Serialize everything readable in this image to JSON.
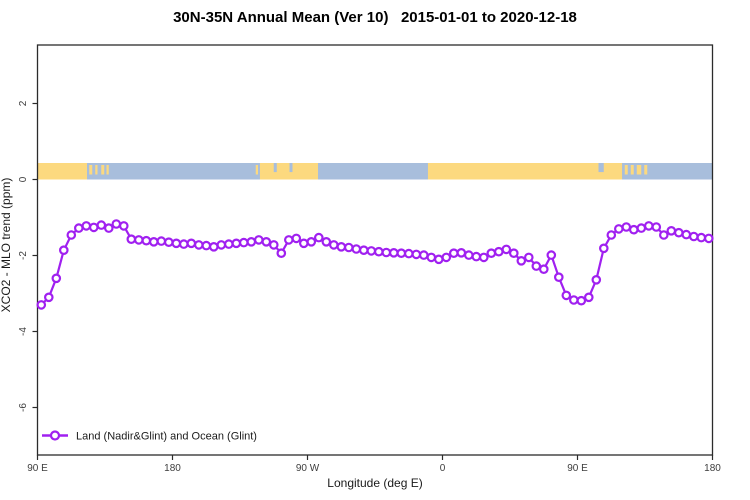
{
  "title": "30N-35N Annual Mean (Ver 10)   2015-01-01 to 2020-12-18",
  "axes": {
    "x_label": "Longitude (deg E)",
    "y_label": "XCO2 - MLO trend (ppm)",
    "x_tick_labels": [
      "90 E",
      "180",
      "90 W",
      "0",
      "90 E",
      "180"
    ],
    "y_tick_labels": [
      "2",
      "0",
      "-2",
      "-4",
      "-6"
    ],
    "y_tick_values": [
      2,
      0,
      -2,
      -4,
      -6
    ]
  },
  "legend": {
    "label": "Land (Nadir&Glint) and Ocean (Glint)"
  },
  "colors": {
    "line": "#A020F0",
    "marker_fill": "#ffffff",
    "ocean": "#A8BEDC",
    "land": "#FCD97F",
    "frame": "#2b2b2b",
    "tick_text": "#3d3d3d",
    "label_text": "#1a1a1a"
  },
  "map_strip": {
    "description": "land/ocean band at y ~ 0 to +0.43 ppm",
    "span_deg": [
      0,
      450
    ],
    "land_segments_deg": [
      [
        0,
        33
      ],
      [
        148.3,
        187
      ],
      [
        260.3,
        389.7
      ]
    ],
    "island_specks_deg": [
      [
        34.5,
        36.5
      ],
      [
        38.5,
        40
      ],
      [
        42.5,
        44.5
      ],
      [
        46,
        47.5
      ],
      [
        145.5,
        147
      ],
      [
        391.5,
        393.5
      ],
      [
        395.5,
        397.5
      ],
      [
        399.5,
        402.5
      ],
      [
        404.5,
        406.5
      ]
    ],
    "ocean_notches_deg": [
      [
        157.5,
        159.5
      ],
      [
        168,
        170
      ],
      [
        374,
        377.5
      ]
    ]
  },
  "chart_data": {
    "type": "line",
    "title": "30N-35N Annual Mean (Ver 10)   2015-01-01 to 2020-12-18",
    "xlabel": "Longitude (deg E)",
    "ylabel": "XCO2 - MLO trend (ppm)",
    "x_axis": {
      "start_label": "90 E",
      "span_deg": 450,
      "tick_interval_deg": 90,
      "tick_labels": [
        "90 E",
        "180",
        "90 W",
        "0",
        "90 E",
        "180"
      ]
    },
    "ylim": [
      -7.25,
      3.55
    ],
    "y_ticks": [
      2,
      0,
      -2,
      -4,
      -6
    ],
    "grid": false,
    "legend_position": "bottom-left-inside",
    "x_start_deg_along_axis": 2.5,
    "x_step_deg": 5,
    "n_points": 90,
    "series": [
      {
        "name": "Land (Nadir&Glint) and Ocean (Glint)",
        "marker": "open-circle",
        "color": "#A020F0",
        "values": [
          -3.3,
          -3.1,
          -2.6,
          -1.86,
          -1.46,
          -1.28,
          -1.22,
          -1.26,
          -1.2,
          -1.28,
          -1.17,
          -1.22,
          -1.57,
          -1.59,
          -1.61,
          -1.64,
          -1.62,
          -1.65,
          -1.68,
          -1.7,
          -1.68,
          -1.72,
          -1.74,
          -1.77,
          -1.72,
          -1.7,
          -1.68,
          -1.66,
          -1.64,
          -1.59,
          -1.64,
          -1.72,
          -1.94,
          -1.59,
          -1.55,
          -1.68,
          -1.64,
          -1.53,
          -1.64,
          -1.72,
          -1.77,
          -1.79,
          -1.83,
          -1.86,
          -1.88,
          -1.9,
          -1.92,
          -1.93,
          -1.94,
          -1.95,
          -1.97,
          -1.99,
          -2.05,
          -2.1,
          -2.05,
          -1.94,
          -1.93,
          -1.99,
          -2.03,
          -2.05,
          -1.94,
          -1.9,
          -1.84,
          -1.94,
          -2.14,
          -2.05,
          -2.28,
          -2.36,
          -1.99,
          -2.57,
          -3.05,
          -3.17,
          -3.19,
          -3.1,
          -2.64,
          -1.81,
          -1.46,
          -1.3,
          -1.25,
          -1.32,
          -1.28,
          -1.22,
          -1.25,
          -1.46,
          -1.35,
          -1.4,
          -1.45,
          -1.5,
          -1.53,
          -1.55
        ]
      }
    ]
  }
}
